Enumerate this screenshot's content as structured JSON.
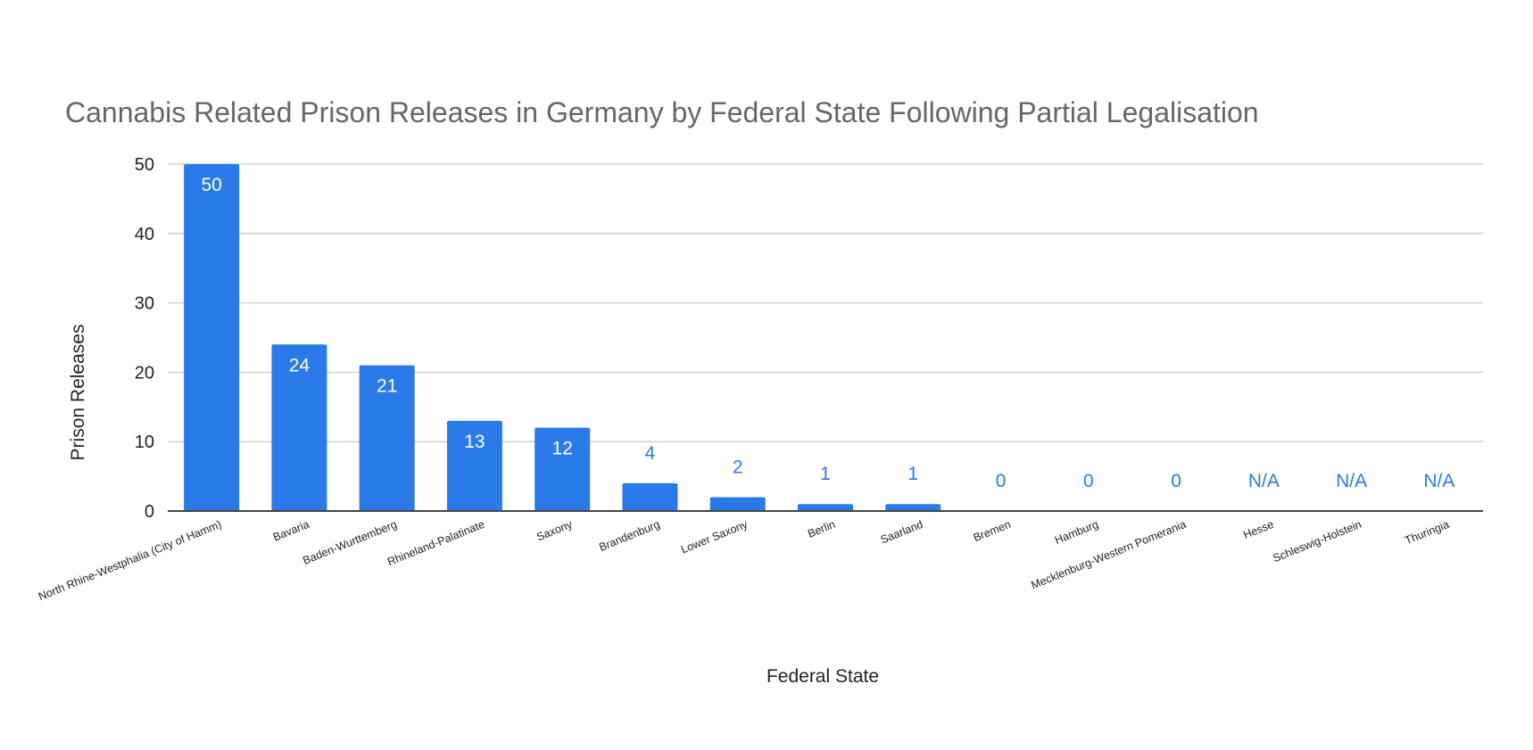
{
  "chart_data": {
    "type": "bar",
    "title": "Cannabis Related Prison Releases in Germany by Federal State Following Partial Legalisation",
    "xlabel": "Federal State",
    "ylabel": "Prison Releases",
    "ylim": [
      0,
      50
    ],
    "yticks": [
      "0",
      "10",
      "20",
      "30",
      "40",
      "50"
    ],
    "grid": true,
    "legend": "none",
    "bar_color": "#2a7ae9",
    "categories": [
      "North Rhine-Westphalia (City of Hamm)",
      "Bavaria",
      "Baden-Wurttemberg",
      "Rhineland-Palatinate",
      "Saxony",
      "Brandenburg",
      "Lower Saxony",
      "Berlin",
      "Saarland",
      "Bremen",
      "Hamburg",
      "Mecklenburg-Western Pomerania",
      "Hesse",
      "Schleswig-Holstein",
      "Thuringia"
    ],
    "values": [
      50,
      24,
      21,
      13,
      12,
      4,
      2,
      1,
      1,
      0,
      0,
      0,
      null,
      null,
      null
    ],
    "data_labels": [
      "50",
      "24",
      "21",
      "13",
      "12",
      "4",
      "2",
      "1",
      "1",
      "0",
      "0",
      "0",
      "N/A",
      "N/A",
      "N/A"
    ]
  }
}
